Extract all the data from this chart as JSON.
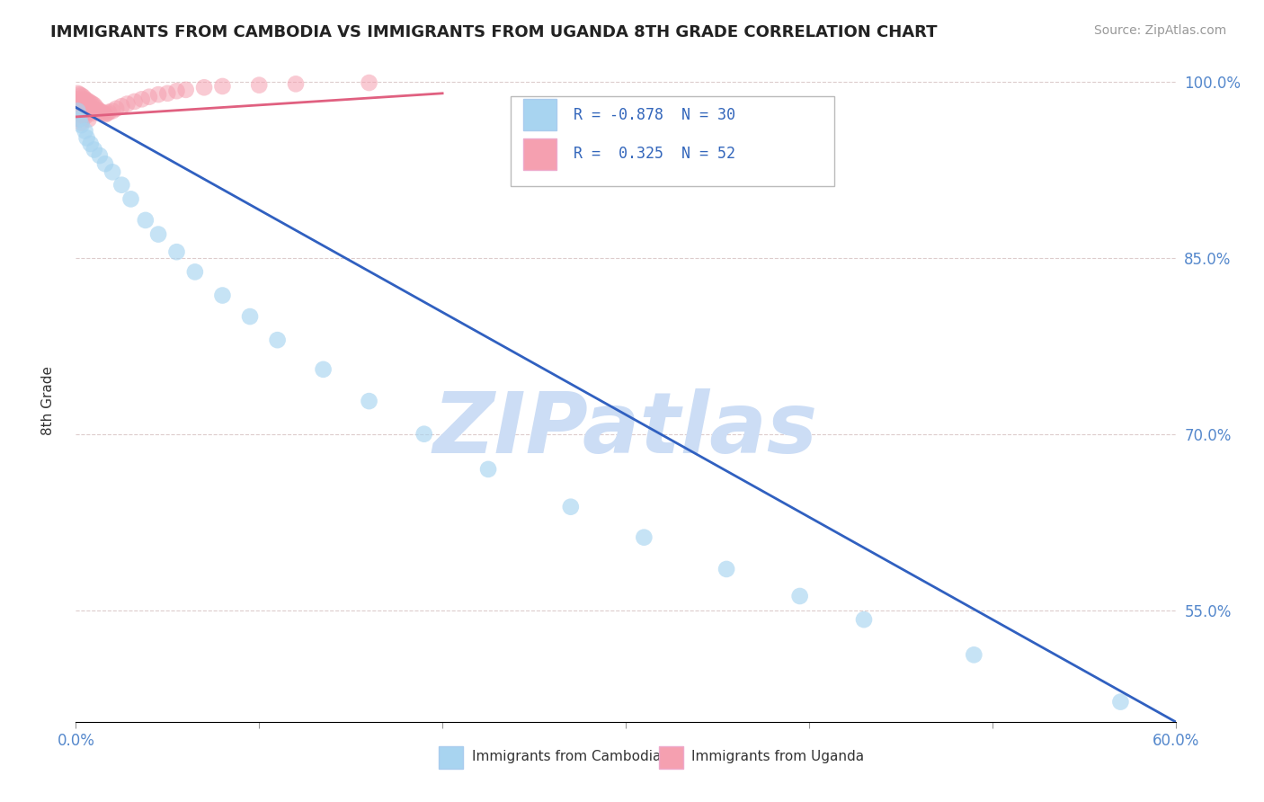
{
  "title": "IMMIGRANTS FROM CAMBODIA VS IMMIGRANTS FROM UGANDA 8TH GRADE CORRELATION CHART",
  "source": "Source: ZipAtlas.com",
  "ylabel": "8th Grade",
  "legend1_label": "Immigrants from Cambodia",
  "legend2_label": "Immigrants from Uganda",
  "R_cambodia": -0.878,
  "N_cambodia": 30,
  "R_uganda": 0.325,
  "N_uganda": 52,
  "color_cambodia": "#A8D4F0",
  "color_uganda": "#F5A0B0",
  "color_line_cambodia": "#3060C0",
  "color_line_uganda": "#E06080",
  "watermark": "ZIPatlas",
  "watermark_color": "#CCDDF5",
  "background_color": "#FFFFFF",
  "xlim": [
    0.0,
    0.6
  ],
  "ylim": [
    0.455,
    1.008
  ],
  "cambodia_x": [
    0.001,
    0.002,
    0.003,
    0.005,
    0.006,
    0.008,
    0.01,
    0.013,
    0.016,
    0.02,
    0.025,
    0.03,
    0.038,
    0.045,
    0.055,
    0.065,
    0.08,
    0.095,
    0.11,
    0.135,
    0.16,
    0.19,
    0.225,
    0.27,
    0.31,
    0.355,
    0.395,
    0.43,
    0.49,
    0.57
  ],
  "cambodia_y": [
    0.975,
    0.968,
    0.963,
    0.958,
    0.952,
    0.947,
    0.942,
    0.937,
    0.93,
    0.923,
    0.912,
    0.9,
    0.882,
    0.87,
    0.855,
    0.838,
    0.818,
    0.8,
    0.78,
    0.755,
    0.728,
    0.7,
    0.67,
    0.638,
    0.612,
    0.585,
    0.562,
    0.542,
    0.512,
    0.472
  ],
  "uganda_x": [
    0.001,
    0.001,
    0.001,
    0.001,
    0.002,
    0.002,
    0.002,
    0.002,
    0.003,
    0.003,
    0.003,
    0.003,
    0.004,
    0.004,
    0.004,
    0.005,
    0.005,
    0.005,
    0.006,
    0.006,
    0.007,
    0.007,
    0.007,
    0.008,
    0.008,
    0.009,
    0.009,
    0.01,
    0.011,
    0.012,
    0.013,
    0.014,
    0.015,
    0.016,
    0.017,
    0.018,
    0.02,
    0.022,
    0.025,
    0.028,
    0.032,
    0.036,
    0.04,
    0.045,
    0.05,
    0.055,
    0.06,
    0.07,
    0.08,
    0.1,
    0.12,
    0.16
  ],
  "uganda_y": [
    0.99,
    0.985,
    0.978,
    0.972,
    0.989,
    0.982,
    0.975,
    0.968,
    0.988,
    0.98,
    0.973,
    0.965,
    0.987,
    0.979,
    0.971,
    0.985,
    0.978,
    0.97,
    0.984,
    0.976,
    0.983,
    0.975,
    0.968,
    0.982,
    0.974,
    0.981,
    0.973,
    0.98,
    0.978,
    0.976,
    0.975,
    0.974,
    0.973,
    0.972,
    0.973,
    0.974,
    0.975,
    0.977,
    0.979,
    0.981,
    0.983,
    0.985,
    0.987,
    0.989,
    0.99,
    0.992,
    0.993,
    0.995,
    0.996,
    0.997,
    0.998,
    0.999
  ],
  "line_cam_x0": 0.0,
  "line_cam_y0": 0.978,
  "line_cam_x1": 0.6,
  "line_cam_y1": 0.455,
  "line_uga_x0": 0.0,
  "line_uga_y0": 0.97,
  "line_uga_x1": 0.2,
  "line_uga_y1": 0.99
}
